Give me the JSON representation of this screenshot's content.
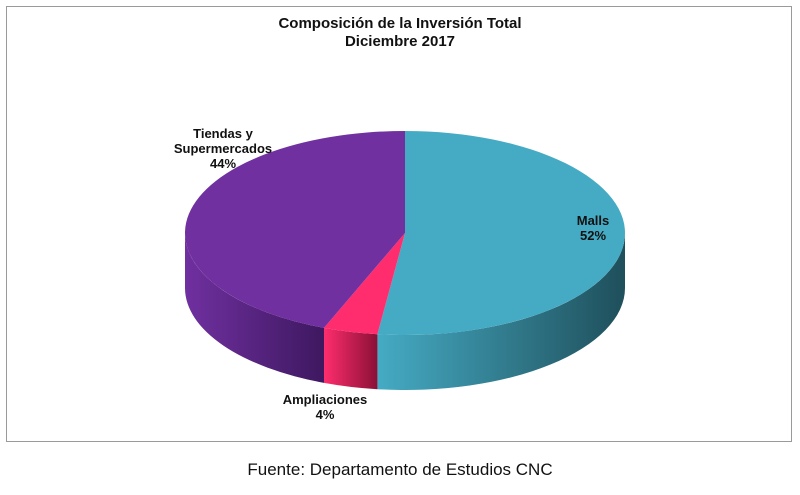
{
  "chart_data": {
    "type": "pie",
    "title": "Composición de la Inversión Total",
    "subtitle": "Diciembre 2017",
    "slices": [
      {
        "label": "Malls",
        "value": 52,
        "display": "52%",
        "color": "#45abc4",
        "side": "#1f4f5b"
      },
      {
        "label": "Ampliaciones",
        "value": 4,
        "display": "4%",
        "color": "#ff2d6d",
        "side": "#8a1037"
      },
      {
        "label": "Tiendas y Supermercados",
        "value": 44,
        "display": "44%",
        "color": "#7030a0",
        "side": "#3e1860"
      }
    ],
    "style": "3d"
  },
  "labels": {
    "malls_name": "Malls",
    "malls_pct": "52%",
    "ampl_name": "Ampliaciones",
    "ampl_pct": "4%",
    "tiendas_l1": "Tiendas y",
    "tiendas_l2": "Supermercados",
    "tiendas_pct": "44%"
  },
  "source": "Fuente: Departamento de Estudios CNC"
}
